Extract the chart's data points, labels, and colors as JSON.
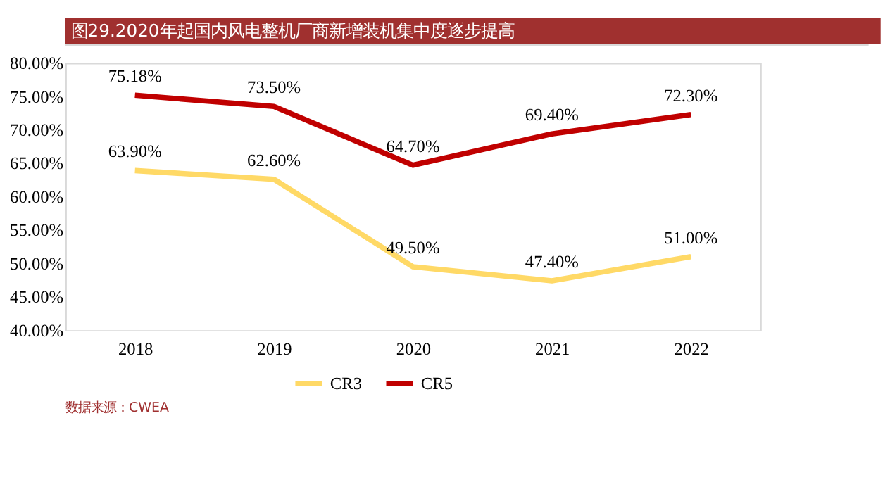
{
  "chart_data": {
    "type": "line",
    "title": "图29.2020年起国内风电整机厂商新增装机集中度逐步提高",
    "categories": [
      "2018",
      "2019",
      "2020",
      "2021",
      "2022"
    ],
    "series": [
      {
        "name": "CR3",
        "color": "#ffd966",
        "values": [
          63.9,
          62.6,
          49.5,
          47.4,
          51.0
        ],
        "value_labels": [
          "63.90%",
          "62.60%",
          "49.50%",
          "47.40%",
          "51.00%"
        ]
      },
      {
        "name": "CR5",
        "color": "#c00000",
        "values": [
          75.18,
          73.5,
          64.7,
          69.4,
          72.3
        ],
        "value_labels": [
          "75.18%",
          "73.50%",
          "64.70%",
          "69.40%",
          "72.30%"
        ]
      }
    ],
    "ylim": [
      40,
      80
    ],
    "yticks": [
      {
        "value": 40,
        "label": "40.00%"
      },
      {
        "value": 45,
        "label": "45.00%"
      },
      {
        "value": 50,
        "label": "50.00%"
      },
      {
        "value": 55,
        "label": "55.00%"
      },
      {
        "value": 60,
        "label": "60.00%"
      },
      {
        "value": 65,
        "label": "65.00%"
      },
      {
        "value": 70,
        "label": "70.00%"
      },
      {
        "value": 75,
        "label": "75.00%"
      },
      {
        "value": 80,
        "label": "80.00%"
      }
    ],
    "grid": false,
    "legend": "bottom",
    "marker": "none",
    "line_style": "solid",
    "annotations": [
      "数据来源：CWEA"
    ]
  }
}
